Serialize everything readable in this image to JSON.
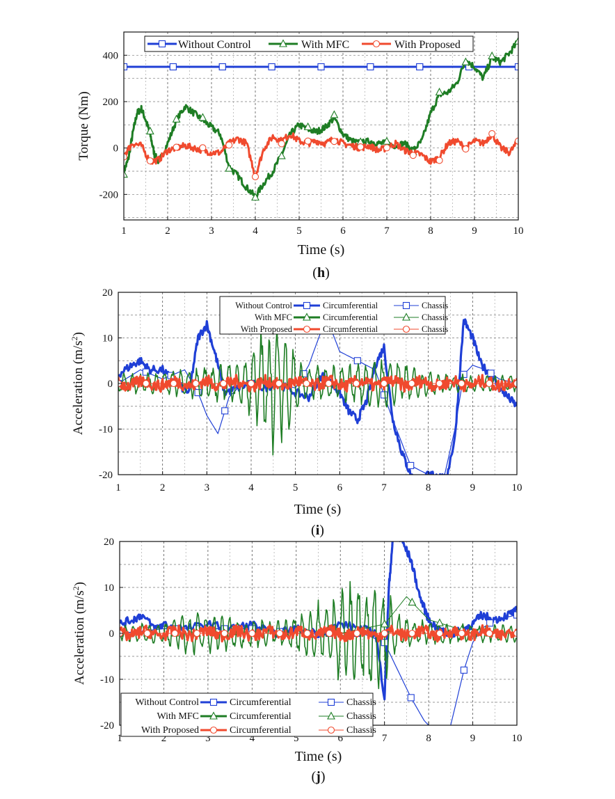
{
  "chart_data": [
    {
      "type": "line",
      "panel_label": "h",
      "xlabel": "Time (s)",
      "ylabel": "Torque (Nm)",
      "xlim": [
        1,
        10
      ],
      "ylim": [
        -310,
        500
      ],
      "xticks": [
        1,
        2,
        3,
        4,
        5,
        6,
        7,
        8,
        9,
        10
      ],
      "yticks": [
        -200,
        0,
        200,
        400
      ],
      "grid": true,
      "legend_position": "top",
      "legend": [
        {
          "label": "Without Control",
          "color": "#1f3fd6",
          "marker": "square"
        },
        {
          "label": "With MFC",
          "color": "#1e7d24",
          "marker": "triangle"
        },
        {
          "label": "With Proposed",
          "color": "#f04a2e",
          "marker": "circle"
        }
      ],
      "series": [
        {
          "name": "Without Control",
          "color": "#1f3fd6",
          "marker": "square",
          "x": [
            1,
            10
          ],
          "y": [
            350,
            350
          ]
        },
        {
          "name": "With MFC",
          "color": "#1e7d24",
          "marker": "triangle",
          "x": [
            1,
            1.1,
            1.2,
            1.3,
            1.4,
            1.5,
            1.6,
            1.7,
            1.8,
            2.0,
            2.2,
            2.4,
            2.6,
            2.8,
            3.0,
            3.2,
            3.4,
            3.6,
            3.8,
            4.0,
            4.2,
            4.4,
            4.6,
            4.8,
            5.0,
            5.2,
            5.4,
            5.6,
            5.8,
            6.0,
            6.2,
            6.4,
            6.6,
            6.8,
            7.0,
            7.2,
            7.4,
            7.6,
            7.8,
            8.0,
            8.2,
            8.4,
            8.6,
            8.8,
            9.0,
            9.2,
            9.4,
            9.6,
            9.8,
            10
          ],
          "y": [
            -100,
            -50,
            60,
            150,
            170,
            120,
            60,
            -30,
            -60,
            20,
            120,
            180,
            150,
            120,
            90,
            60,
            -80,
            -120,
            -170,
            -210,
            -150,
            -100,
            -30,
            60,
            100,
            80,
            70,
            90,
            130,
            60,
            30,
            20,
            30,
            20,
            20,
            10,
            20,
            -10,
            30,
            150,
            230,
            240,
            280,
            380,
            350,
            300,
            390,
            370,
            410,
            460
          ]
        },
        {
          "name": "With Proposed",
          "color": "#f04a2e",
          "marker": "circle",
          "x": [
            1,
            1.2,
            1.4,
            1.6,
            1.8,
            2.0,
            2.2,
            2.4,
            2.6,
            2.8,
            3.0,
            3.2,
            3.4,
            3.6,
            3.8,
            4.0,
            4.2,
            4.4,
            4.6,
            4.8,
            5.0,
            5.2,
            5.4,
            5.6,
            5.8,
            6.0,
            6.2,
            6.4,
            6.6,
            6.8,
            7.0,
            7.2,
            7.4,
            7.6,
            7.8,
            8.0,
            8.2,
            8.4,
            8.6,
            8.8,
            9.0,
            9.2,
            9.4,
            9.6,
            9.8,
            10
          ],
          "y": [
            -30,
            20,
            10,
            -60,
            -50,
            -10,
            0,
            10,
            0,
            -10,
            -20,
            -20,
            20,
            40,
            20,
            -120,
            0,
            50,
            30,
            60,
            30,
            20,
            30,
            20,
            40,
            20,
            10,
            0,
            10,
            -10,
            0,
            20,
            -10,
            -20,
            -30,
            -60,
            -40,
            20,
            30,
            0,
            30,
            20,
            60,
            0,
            -20,
            30
          ]
        }
      ]
    },
    {
      "type": "line",
      "panel_label": "i",
      "xlabel": "Time (s)",
      "ylabel": "Acceleration (m/s",
      "ylabel_sup": "2",
      "ylabel_end": ")",
      "xlim": [
        1,
        10
      ],
      "ylim": [
        -20,
        20
      ],
      "xticks": [
        1,
        2,
        3,
        4,
        5,
        6,
        7,
        8,
        9,
        10
      ],
      "yticks": [
        -20,
        -10,
        0,
        10,
        20
      ],
      "grid": true,
      "legend_position": "top",
      "legend_rows": [
        {
          "group": "Without Control",
          "a": "Circumferential",
          "b": "Chassis",
          "color": "#1f3fd6",
          "marker": "square"
        },
        {
          "group": "With MFC",
          "a": "Circumferential",
          "b": "Chassis",
          "color": "#1e7d24",
          "marker": "triangle"
        },
        {
          "group": "With Proposed",
          "a": "Circumferential",
          "b": "Chassis",
          "color": "#f04a2e",
          "marker": "circle"
        }
      ],
      "series": [
        {
          "name": "Without Control Circumferential",
          "color": "#1f3fd6",
          "width": 3.2,
          "x": [
            1,
            1.3,
            1.5,
            1.7,
            2.0,
            2.3,
            2.6,
            2.8,
            3.0,
            3.2,
            3.4,
            3.7,
            4.0,
            4.3,
            4.6,
            5.0,
            5.3,
            5.6,
            5.8,
            6.0,
            6.2,
            6.4,
            6.6,
            6.8,
            7.0,
            7.2,
            7.4,
            7.6,
            7.8,
            8.0,
            8.2,
            8.4,
            8.6,
            8.8,
            9.0,
            9.2,
            9.4,
            9.6,
            9.8,
            10
          ],
          "y": [
            2,
            4,
            5,
            3,
            3,
            0,
            -2,
            10,
            13,
            6,
            -2,
            -1,
            0,
            -1,
            0,
            -2,
            -3,
            2,
            0,
            -2,
            -6,
            -8,
            -4,
            4,
            8,
            -8,
            -15,
            -20,
            -22,
            -20,
            -20,
            -21,
            -12,
            14,
            10,
            4,
            2,
            -1,
            -3,
            -5
          ]
        },
        {
          "name": "Without Control Chassis",
          "color": "#1f3fd6",
          "width": 1.2,
          "marker": "square",
          "x": [
            1,
            1.5,
            2.0,
            2.5,
            2.8,
            3.0,
            3.25,
            3.5,
            3.8,
            4.2,
            4.6,
            5.0,
            5.3,
            5.6,
            5.8,
            6.0,
            6.4,
            6.8,
            7.2,
            7.6,
            8.0,
            8.3,
            8.6,
            8.8,
            9.0,
            9.3,
            9.6,
            10
          ],
          "y": [
            0,
            3,
            1,
            3,
            -2,
            -7,
            -11,
            -3,
            0,
            0,
            0,
            -1,
            4,
            12,
            12,
            7,
            5,
            3,
            -8,
            -18,
            -20,
            -23,
            -10,
            2,
            4,
            3,
            1,
            0
          ]
        },
        {
          "name": "With MFC Circumferential",
          "color": "#1e7d24",
          "width": 1.6,
          "x_start": 1,
          "x_end": 10,
          "envelope": [
            [
              1,
              2
            ],
            [
              2,
              2
            ],
            [
              3,
              3
            ],
            [
              3.8,
              4
            ],
            [
              4.2,
              10
            ],
            [
              4.5,
              12
            ],
            [
              4.8,
              9
            ],
            [
              5.2,
              3
            ],
            [
              6,
              3
            ],
            [
              7,
              5
            ],
            [
              8,
              2
            ],
            [
              9,
              1.5
            ],
            [
              10,
              1.5
            ]
          ]
        },
        {
          "name": "With MFC Chassis",
          "color": "#1e7d24",
          "width": 1,
          "marker": "triangle",
          "x": [
            1,
            2,
            3,
            4,
            5,
            6,
            7,
            8,
            9,
            10
          ],
          "y": [
            0,
            0,
            0,
            0,
            0,
            0,
            0,
            0,
            0,
            0
          ]
        },
        {
          "name": "With Proposed Circumferential",
          "color": "#f04a2e",
          "width": 3.2,
          "x_start": 1,
          "x_end": 10,
          "amplitude": 1.4
        },
        {
          "name": "With Proposed Chassis",
          "color": "#f04a2e",
          "width": 1,
          "marker": "circle",
          "x": [
            1,
            2,
            3,
            4,
            5,
            6,
            7,
            8,
            9,
            10
          ],
          "y": [
            0,
            0,
            0,
            0,
            0,
            0,
            0,
            0,
            0,
            0
          ]
        }
      ]
    },
    {
      "type": "line",
      "panel_label": "j",
      "xlabel": "Time (s)",
      "ylabel": "Acceleration (m/s",
      "ylabel_sup": "2",
      "ylabel_end": ")",
      "xlim": [
        1,
        10
      ],
      "ylim": [
        -20,
        20
      ],
      "xticks": [
        1,
        2,
        3,
        4,
        5,
        6,
        7,
        8,
        9,
        10
      ],
      "yticks": [
        -20,
        -10,
        0,
        10,
        20
      ],
      "grid": true,
      "legend_position": "bottom-left",
      "legend_rows": [
        {
          "group": "Without Control",
          "a": "Circumferential",
          "b": "Chassis",
          "color": "#1f3fd6",
          "marker": "square"
        },
        {
          "group": "With MFC",
          "a": "Circumferential",
          "b": "Chassis",
          "color": "#1e7d24",
          "marker": "triangle"
        },
        {
          "group": "With Proposed",
          "a": "Circumferential",
          "b": "Chassis",
          "color": "#f04a2e",
          "marker": "circle"
        }
      ],
      "series": [
        {
          "name": "Without Control Circumferential",
          "color": "#1f3fd6",
          "width": 3.2,
          "x": [
            1,
            1.3,
            1.5,
            1.8,
            2.0,
            2.5,
            3.0,
            3.5,
            4.0,
            4.5,
            5.0,
            5.5,
            6.0,
            6.5,
            6.8,
            7.0,
            7.1,
            7.2,
            7.4,
            7.6,
            7.8,
            8.0,
            8.2,
            8.4,
            8.6,
            8.8,
            9.0,
            9.2,
            9.5,
            9.8,
            10
          ],
          "y": [
            2,
            3,
            4,
            1,
            2,
            1,
            2,
            1,
            2,
            0,
            1,
            0,
            2,
            1,
            0,
            -14,
            10,
            22,
            20,
            16,
            8,
            3,
            1,
            0,
            0,
            1,
            2,
            4,
            3,
            4,
            5
          ]
        },
        {
          "name": "Without Control Chassis",
          "color": "#1f3fd6",
          "width": 1.2,
          "marker": "square",
          "x": [
            1,
            2,
            3,
            4,
            5,
            6,
            6.5,
            7.0,
            7.3,
            7.6,
            7.9,
            8.2,
            8.5,
            8.8,
            9.0,
            9.2,
            9.5,
            10
          ],
          "y": [
            0,
            1,
            1,
            1,
            0,
            0,
            0,
            -2,
            -8,
            -14,
            -19,
            -22,
            -20,
            -8,
            -2,
            1,
            3,
            4
          ]
        },
        {
          "name": "With MFC Circumferential",
          "color": "#1e7d24",
          "width": 1.6,
          "x_start": 1,
          "x_end": 10,
          "envelope": [
            [
              1,
              1.5
            ],
            [
              2,
              2
            ],
            [
              2.5,
              4
            ],
            [
              3.5,
              3
            ],
            [
              4.5,
              2
            ],
            [
              5.2,
              4
            ],
            [
              5.8,
              7
            ],
            [
              6.3,
              9
            ],
            [
              6.6,
              11
            ],
            [
              7.0,
              8
            ],
            [
              7.4,
              3
            ],
            [
              8,
              2
            ],
            [
              9,
              1.5
            ],
            [
              10,
              1.5
            ]
          ]
        },
        {
          "name": "With MFC Chassis",
          "color": "#1e7d24",
          "width": 1,
          "marker": "triangle",
          "x": [
            1,
            2,
            3,
            4,
            5,
            6,
            7,
            7.5,
            8,
            9,
            10
          ],
          "y": [
            0,
            0,
            0,
            0,
            0,
            0,
            2,
            8,
            3,
            0,
            0
          ]
        },
        {
          "name": "With Proposed Circumferential",
          "color": "#f04a2e",
          "width": 3.2,
          "x_start": 1,
          "x_end": 10,
          "amplitude": 1.3
        },
        {
          "name": "With Proposed Chassis",
          "color": "#f04a2e",
          "width": 1,
          "marker": "circle",
          "x": [
            1,
            2,
            3,
            4,
            5,
            6,
            7,
            8,
            9,
            10
          ],
          "y": [
            0,
            0,
            0,
            0,
            0,
            0,
            0,
            0,
            0,
            0
          ]
        }
      ]
    }
  ]
}
